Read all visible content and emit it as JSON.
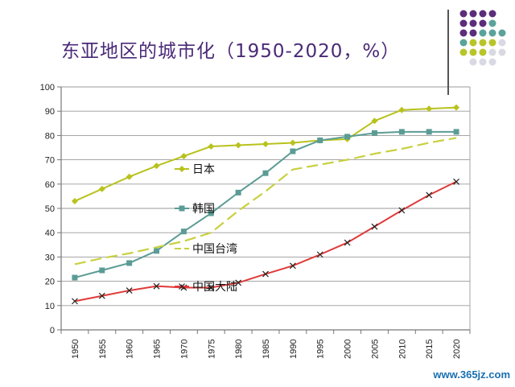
{
  "slide": {
    "title": "东亚地区的城市化（1950-2020，%）",
    "watermark": "www.365jz.com"
  },
  "decoration": {
    "dot_colors": [
      "#5b2d7a",
      "#5aa39a",
      "#b8c52a",
      "#d9d9e3"
    ]
  },
  "chart_data": {
    "type": "line",
    "title": "东亚地区的城市化（1950-2020，%）",
    "xlabel": "",
    "ylabel": "",
    "x": [
      "1950",
      "1955",
      "1960",
      "1965",
      "1970",
      "1975",
      "1980",
      "1985",
      "1990",
      "1995",
      "2000",
      "2005",
      "2010",
      "2015",
      "2020"
    ],
    "ylim": [
      0,
      100
    ],
    "yticks": [
      0,
      10,
      20,
      30,
      40,
      50,
      60,
      70,
      80,
      90,
      100
    ],
    "grid": true,
    "legend": "inline labels",
    "series": [
      {
        "name": "日本",
        "color": "#b8c21c",
        "dash": "solid",
        "marker": "diamond",
        "values": [
          53,
          58,
          63,
          67.5,
          71.5,
          75.5,
          76,
          76.5,
          77,
          78,
          78.5,
          86,
          90.5,
          91,
          91.5
        ]
      },
      {
        "name": "韩国",
        "color": "#5b9c95",
        "dash": "solid",
        "marker": "square",
        "values": [
          21.5,
          24.5,
          27.5,
          32.5,
          40.5,
          48,
          56.5,
          64.5,
          73.5,
          78,
          79.5,
          81,
          81.5,
          81.5,
          81.5
        ]
      },
      {
        "name": "中国台湾",
        "color": "#c8d040",
        "dash": "dashed",
        "marker": "none",
        "values": [
          27,
          29.5,
          31.5,
          34,
          36.5,
          40,
          49,
          57,
          66,
          68,
          70,
          72.5,
          74.5,
          77,
          79
        ]
      },
      {
        "name": "中国大陆",
        "color": "#e03a3a",
        "dash": "solid",
        "marker": "x",
        "values": [
          11.8,
          14,
          16.2,
          18,
          17.4,
          17.4,
          19.4,
          23,
          26.4,
          31,
          35.9,
          42.5,
          49.2,
          55.5,
          61
        ]
      }
    ],
    "annotations": [
      {
        "text": "日本",
        "series": "日本"
      },
      {
        "text": "韩国",
        "series": "韩国"
      },
      {
        "text": "中国台湾",
        "series": "中国台湾"
      },
      {
        "text": "中国大陆",
        "series": "中国大陆"
      }
    ]
  }
}
